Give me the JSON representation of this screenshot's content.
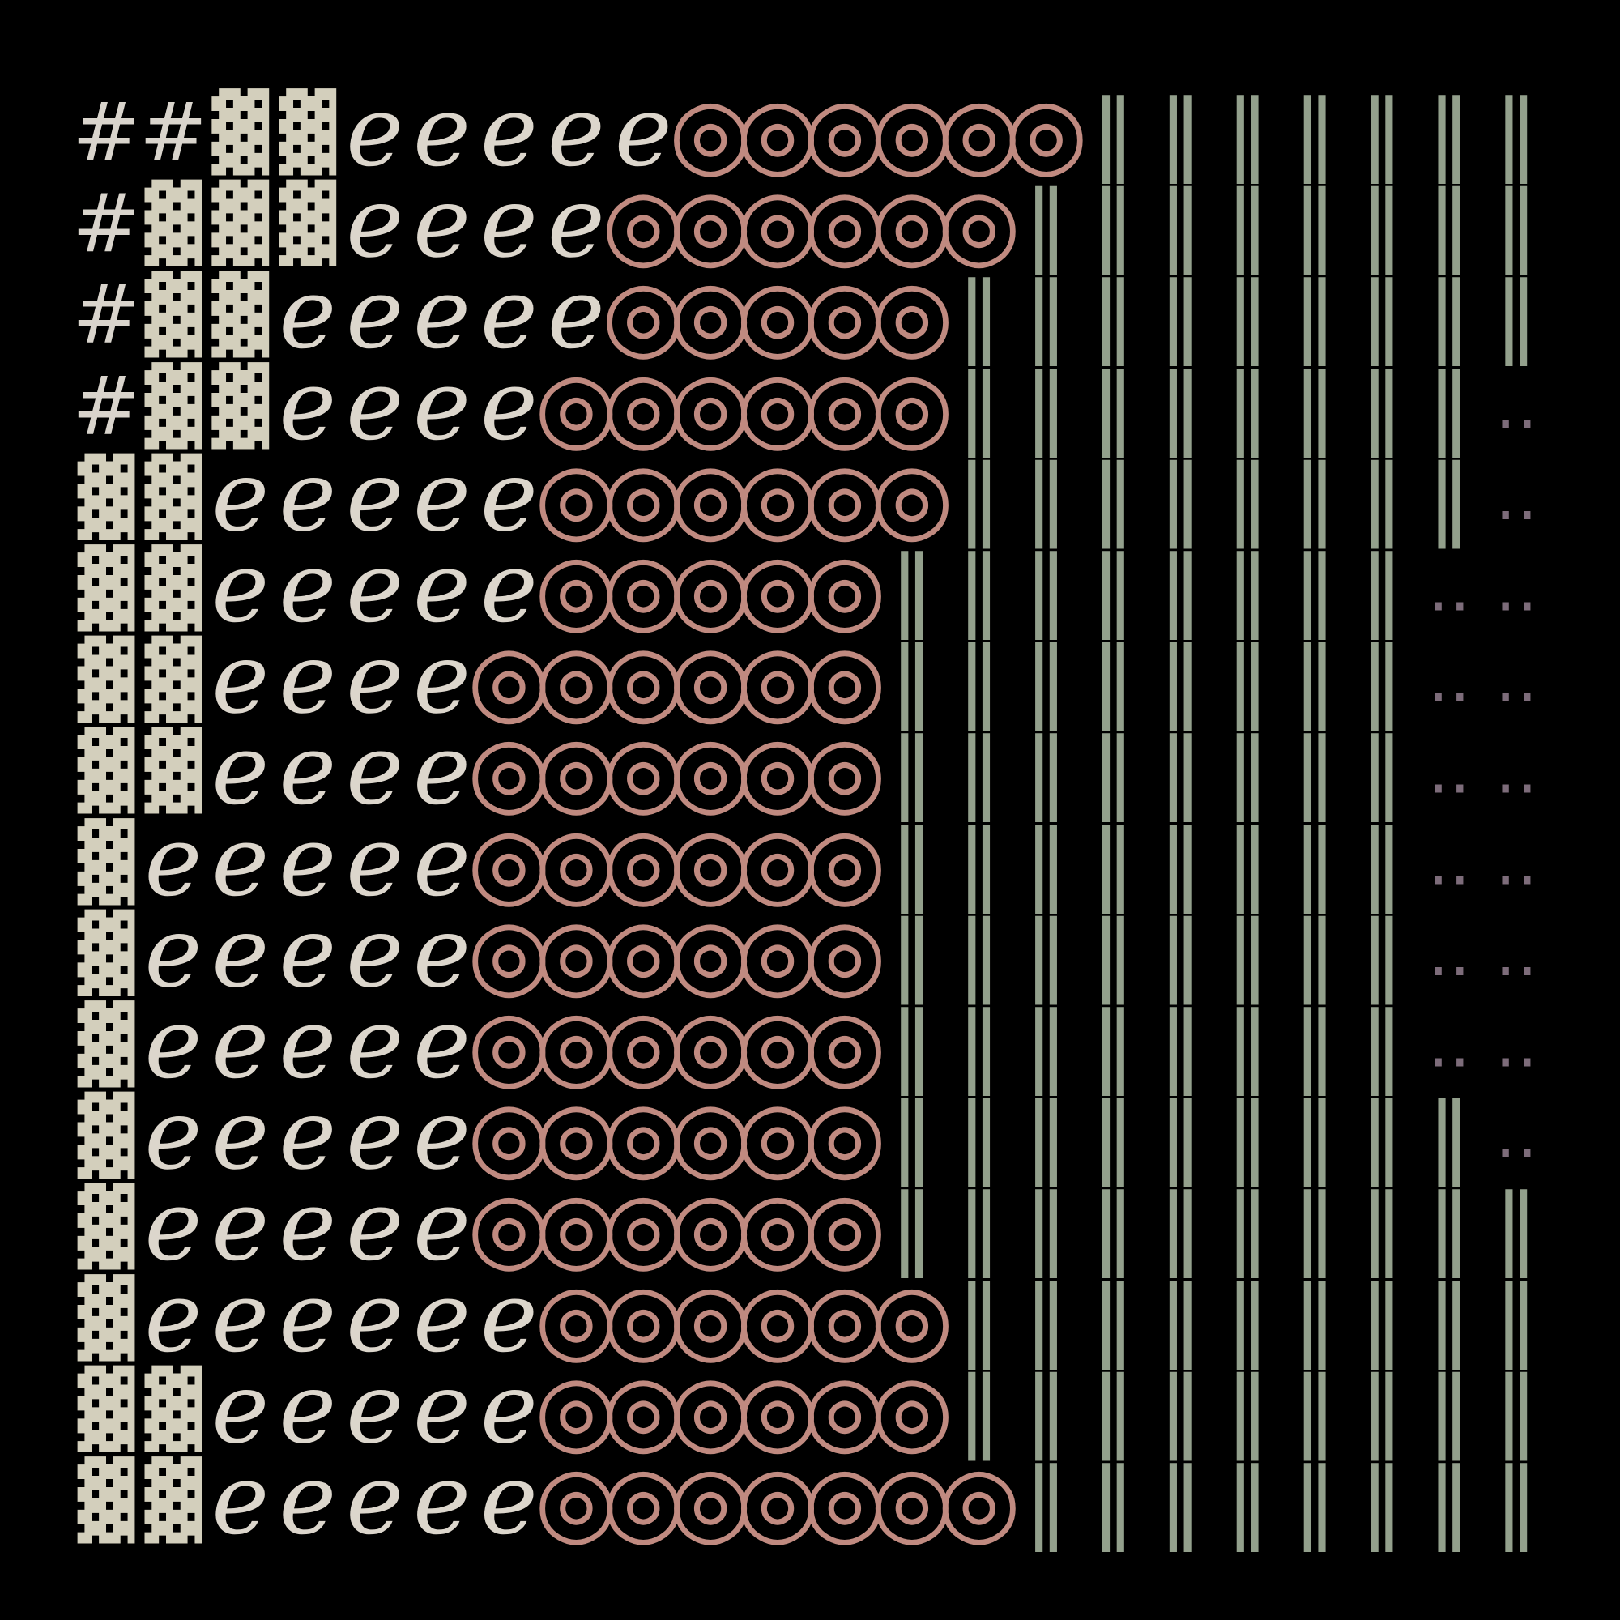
{
  "rows": [
    "##▓▓ℯℯℯℯℯ◎◎◎◎◎◎‖‖‖‖‖‖‖",
    "#▓▓▓ℯℯℯℯ◎◎◎◎◎◎‖‖‖‖‖‖‖‖",
    "#▓▓ℯℯℯℯℯ◎◎◎◎◎‖‖‖‖‖‖‖‖‖",
    "#▓▓ℯℯℯℯ◎◎◎◎◎◎‖‖‖‖‖‖‖‖‥",
    "▓▓ℯℯℯℯℯ◎◎◎◎◎◎‖‖‖‖‖‖‖‖‥",
    "▓▓ℯℯℯℯℯ◎◎◎◎◎‖‖‖‖‖‖‖‖‥‥",
    "▓▓ℯℯℯℯ◎◎◎◎◎◎‖‖‖‖‖‖‖‖‥‥",
    "▓▓ℯℯℯℯ◎◎◎◎◎◎‖‖‖‖‖‖‖‖‥‥",
    "▓ℯℯℯℯℯ◎◎◎◎◎◎‖‖‖‖‖‖‖‖‥‥",
    "▓ℯℯℯℯℯ◎◎◎◎◎◎‖‖‖‖‖‖‖‖‥‥",
    "▓ℯℯℯℯℯ◎◎◎◎◎◎‖‖‖‖‖‖‖‖‥‥",
    "▓ℯℯℯℯℯ◎◎◎◎◎◎‖‖‖‖‖‖‖‖‖‥",
    "▓ℯℯℯℯℯ◎◎◎◎◎◎‖‖‖‖‖‖‖‖‖‖",
    "▓ℯℯℯℯℯℯ◎◎◎◎◎◎‖‖‖‖‖‖‖‖‖",
    "▓▓ℯℯℯℯℯ◎◎◎◎◎◎‖‖‖‖‖‖‖‖‖",
    "▓▓ℯℯℯℯℯ◎◎◎◎◎◎◎‖‖‖‖‖‖‖‖"
  ],
  "glyph_style": {
    "#": {
      "color": "#d9d4cc",
      "size": 100
    },
    "▓": {
      "color": "#d3cfbc",
      "size": 92
    },
    "ℯ": {
      "color": "#dcd6cc",
      "size": 120
    },
    "◎": {
      "color": "#c08a80",
      "size": 118
    },
    "‖": {
      "color": "#93a08c",
      "size": 110
    },
    "‥": {
      "color": "#7d6c7a",
      "size": 80
    }
  }
}
